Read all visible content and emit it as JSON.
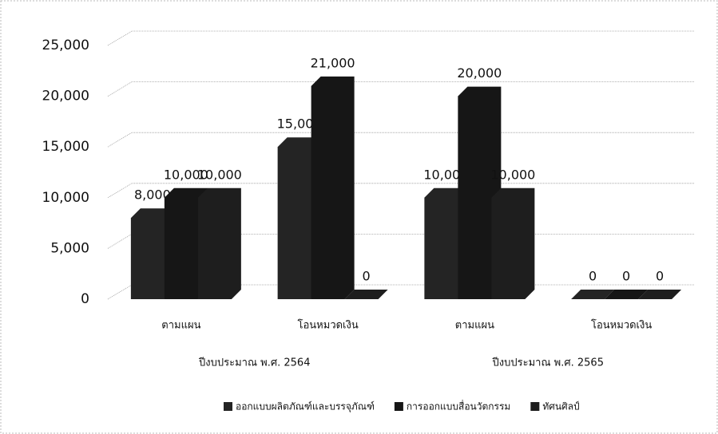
{
  "chart_data": {
    "type": "bar3d",
    "categories": [
      "ตามแผน",
      "โอนหมวดเงิน",
      "ตามแผน",
      "โอนหมวดเงิน"
    ],
    "x_groups": [
      "ปีงบประมาณ พ.ศ. 2564",
      "ปีงบประมาณ พ.ศ. 2565"
    ],
    "series": [
      {
        "name": "ออกแบบผลิตภัณฑ์และบรรจุภัณฑ์",
        "color": "#242424",
        "values": [
          8000,
          15000,
          10000,
          0
        ],
        "value_labels": [
          "8,000",
          "15,000",
          "10,000",
          "0"
        ]
      },
      {
        "name": "การออกแบบสื่อนวัตกรรม",
        "color": "#161616",
        "values": [
          10000,
          21000,
          20000,
          0
        ],
        "value_labels": [
          "10,000",
          "21,000",
          "20,000",
          "0"
        ]
      },
      {
        "name": "ทัศนศิลป์",
        "color": "#1e1e1e",
        "values": [
          10000,
          0,
          10000,
          0
        ],
        "value_labels": [
          "10,000",
          "0",
          "10,000",
          "0"
        ]
      }
    ],
    "ylim": [
      0,
      25000
    ],
    "yticks": [
      0,
      {
        "value": 5000,
        "label": "5,000"
      },
      {
        "value": 10000,
        "label": "10,000"
      },
      {
        "value": 15000,
        "label": "15,000"
      },
      {
        "value": 20000,
        "label": "20,000"
      },
      {
        "value": 25000,
        "label": "25,000"
      }
    ],
    "grid": true,
    "legend": "bottom"
  }
}
